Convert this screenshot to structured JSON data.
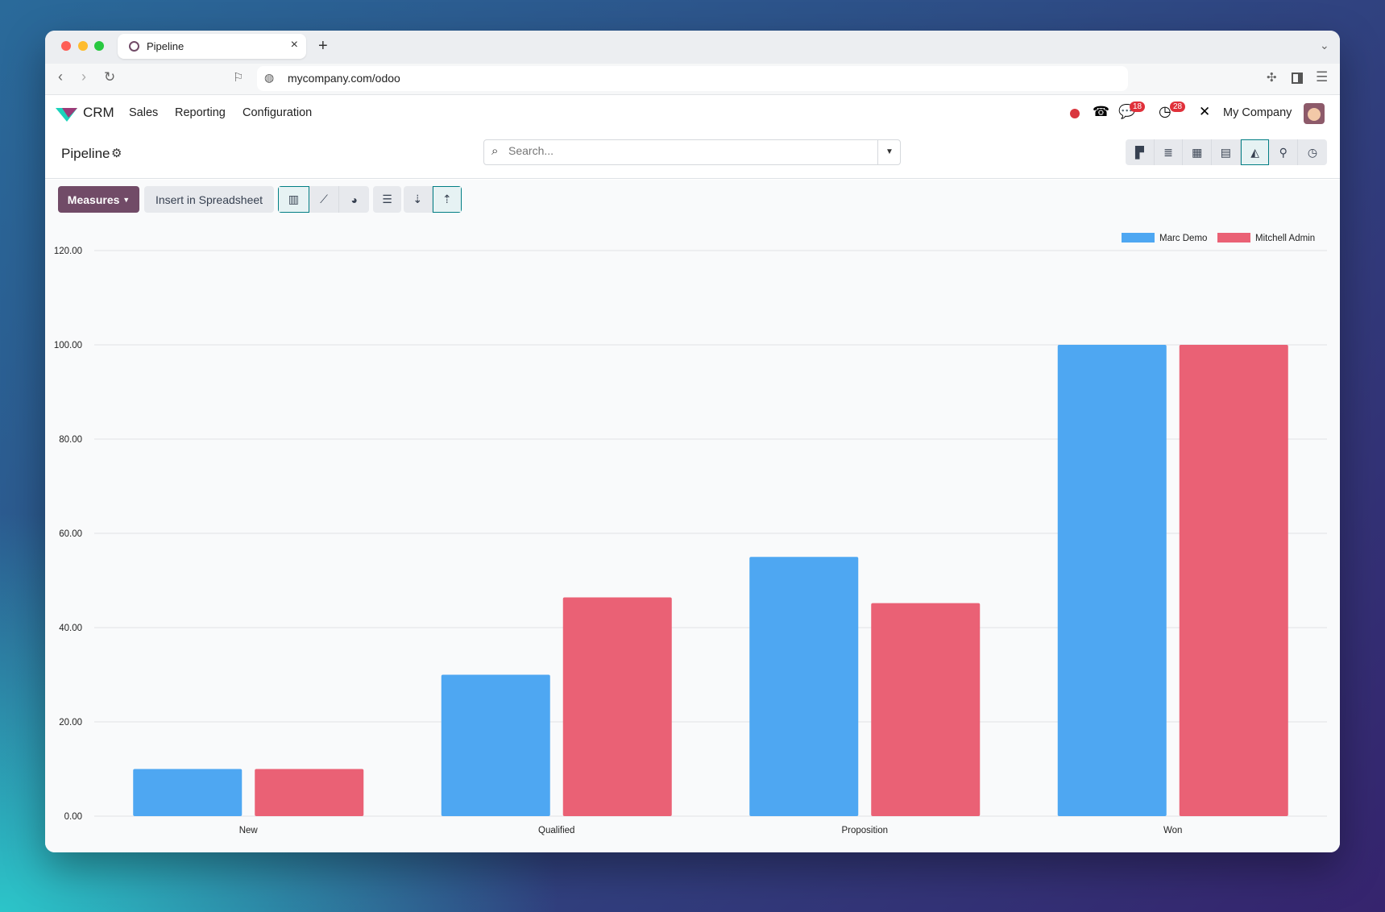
{
  "browser": {
    "tab_title": "Pipeline",
    "url": "mycompany.com/odoo"
  },
  "navbar": {
    "app": "CRM",
    "menus": [
      "Sales",
      "Reporting",
      "Configuration"
    ],
    "messages_badge": "18",
    "activities_badge": "28",
    "company": "My Company"
  },
  "control_panel": {
    "title": "Pipeline",
    "search_placeholder": "Search...",
    "views": [
      "kanban",
      "list",
      "calendar",
      "pivot",
      "graph",
      "map",
      "activity"
    ],
    "active_view": "graph"
  },
  "toolbar": {
    "measures": "Measures",
    "insert": "Insert in Spreadsheet",
    "chart_types": [
      "bar",
      "line",
      "pie"
    ],
    "active_chart_type": "bar",
    "stacked": "stacked",
    "sort": [
      "descending",
      "ascending"
    ],
    "active_sort": "ascending"
  },
  "colors": {
    "accent": "#714b67",
    "active": "#017e84",
    "series1": "#4ea7f2",
    "series2": "#ea6175"
  },
  "chart_data": {
    "type": "bar",
    "categories": [
      "New",
      "Qualified",
      "Proposition",
      "Won"
    ],
    "series": [
      {
        "name": "Marc Demo",
        "color": "#4ea7f2",
        "values": [
          10,
          30,
          55,
          100
        ]
      },
      {
        "name": "Mitchell Admin",
        "color": "#ea6175",
        "values": [
          10,
          46.4,
          45.2,
          100
        ]
      }
    ],
    "yticks": [
      "0.00",
      "20.00",
      "40.00",
      "60.00",
      "80.00",
      "100.00",
      "120.00"
    ],
    "ylim": [
      0,
      120
    ],
    "grid": true,
    "legend": "top-right"
  }
}
